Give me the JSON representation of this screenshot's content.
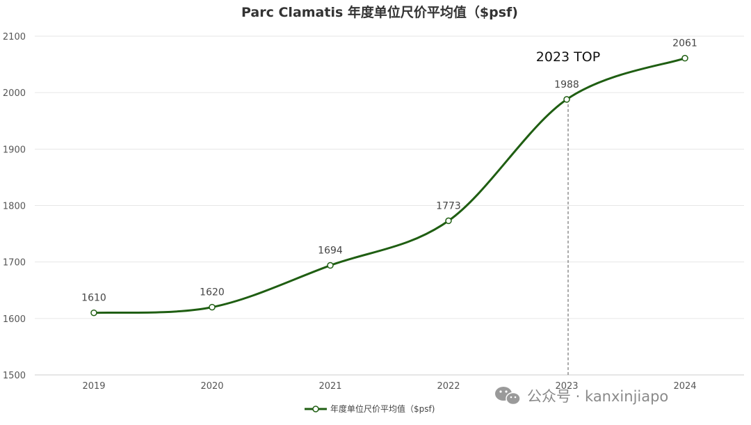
{
  "chart_data": {
    "type": "line",
    "title": "Parc Clamatis 年度单位尺价平均值（$psf)",
    "categories": [
      "2019",
      "2020",
      "2021",
      "2022",
      "2023",
      "2024"
    ],
    "series": [
      {
        "name": "年度单位尺价平均值（$psf)",
        "values": [
          1610,
          1620,
          1694,
          1773,
          1988,
          2061
        ]
      }
    ],
    "ylim": [
      1500,
      2100
    ],
    "yticks": [
      "1500",
      "1600",
      "1700",
      "1800",
      "1900",
      "2000",
      "2100"
    ],
    "grid": true,
    "legend_position": "bottom-center",
    "annotation": {
      "text": "2023 TOP",
      "category": "2023"
    },
    "line_color": "#1f5e12",
    "grid_color": "#e6e6e6"
  },
  "watermark": {
    "icon": "wechat-icon",
    "text": "公众号 · kanxinjiapo"
  }
}
